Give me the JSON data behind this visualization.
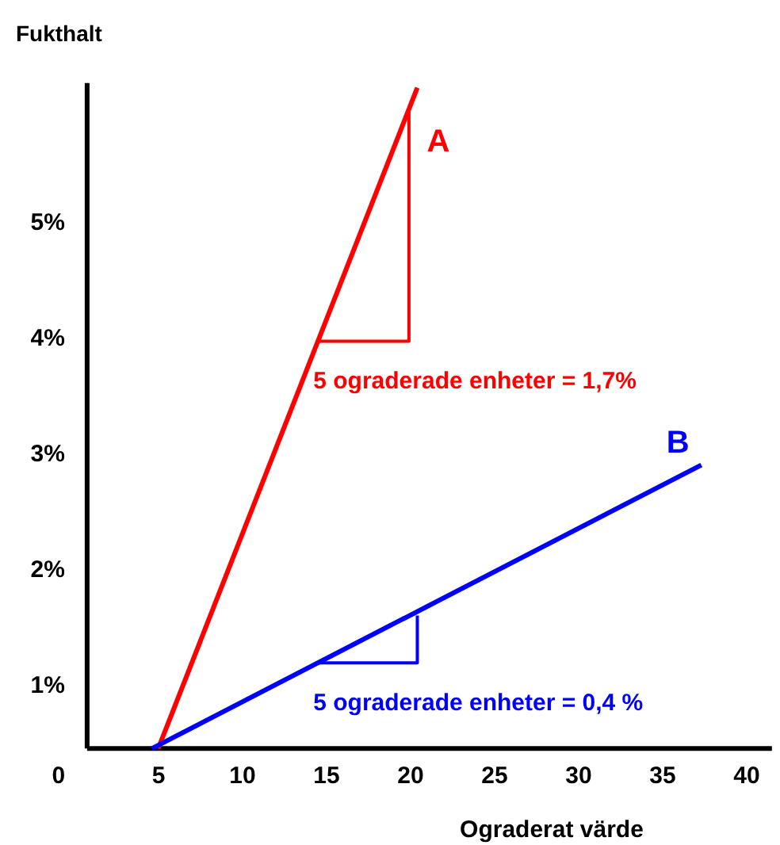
{
  "chart_data": {
    "type": "line",
    "xlabel": "Ograderat värde",
    "ylabel": "Fukthalt",
    "xlim": [
      0.75,
      41.5
    ],
    "xticks": [
      5,
      10,
      15,
      20,
      25,
      30,
      35,
      40
    ],
    "ylim": [
      0.45,
      6.2
    ],
    "yticks": [
      {
        "value": 1,
        "label": "1%"
      },
      {
        "value": 2,
        "label": "2%"
      },
      {
        "value": 3,
        "label": "3%"
      },
      {
        "value": 4,
        "label": "4%"
      },
      {
        "value": 5,
        "label": "5%"
      }
    ],
    "series": [
      {
        "name": "A",
        "color": "#ff0000",
        "x": [
          4.98,
          20.4
        ],
        "values": [
          0.45,
          6.16
        ]
      },
      {
        "name": "B",
        "color": "#0000ff",
        "x": [
          4.6,
          37.3
        ],
        "values": [
          0.45,
          2.9
        ]
      },
      {
        "color": "#ff0000",
        "x": [
          14.4,
          19.9,
          19.9
        ],
        "values": [
          3.97,
          3.97,
          5.96
        ]
      },
      {
        "color": "#0000ff",
        "x": [
          14.4,
          20.4,
          20.4
        ],
        "values": [
          1.19,
          1.19,
          1.6
        ]
      }
    ],
    "annotations": [
      "0",
      {
        "text": "5 ograderade enheter = 1,7%",
        "x": 14.4,
        "y": 3.97
      },
      {
        "text": "5 ograderade enheter = 0,4 %",
        "x": 14.4,
        "y": 1.19
      }
    ],
    "grid": false,
    "marker": "none",
    "line_style": "solid"
  }
}
